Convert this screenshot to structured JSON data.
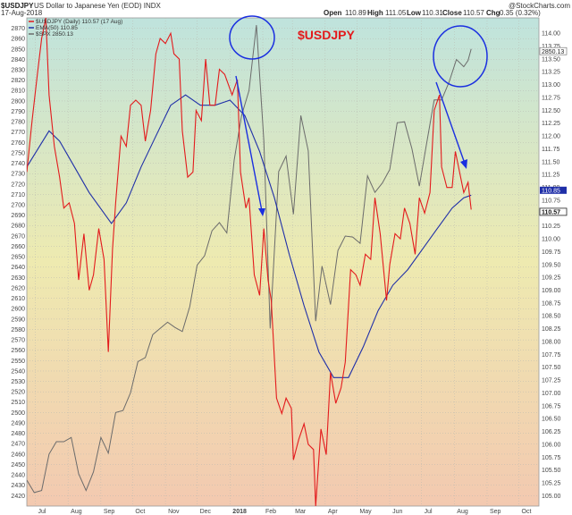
{
  "header": {
    "symbol": "$USDJPY",
    "description": "US Dollar to Japanese Yen (EOD) INDX",
    "date": "17-Aug-2018",
    "credit": "@StockCharts.com",
    "open_label": "Open",
    "open": "110.89",
    "high_label": "High",
    "high": "111.05",
    "low_label": "Low",
    "low": "110.31",
    "close_label": "Close",
    "close": "110.57",
    "chg_label": "Chg",
    "chg": "0.35 (0.32%)"
  },
  "annotation_title": "$USDJPY",
  "legend": [
    {
      "text": "$USDJPY (Daily) 110.57 (17 Aug)",
      "color": "#e31a1c"
    },
    {
      "text": "EMA(50) 110.85",
      "color": "#1f2fa8"
    },
    {
      "text": "$SPX 2850.13",
      "color": "#666666"
    }
  ],
  "price_tags": {
    "ema": "110.85",
    "spx": "2850.13",
    "usdjpy": "110.57"
  },
  "colors": {
    "usdjpy": "#e31a1c",
    "ema": "#1f2fa8",
    "spx": "#6b6b6b",
    "annotation": "#1a2fe0",
    "title": "#e31a1c",
    "bg_top": "#bfe3dd",
    "bg_mid": "#eeeab0",
    "bg_bottom": "#f3c9b0"
  },
  "chart_data": {
    "type": "line",
    "title": "",
    "x_labels": [
      "Jul",
      "Aug",
      "Sep",
      "Oct",
      "Nov",
      "Dec",
      "2018",
      "Feb",
      "Mar",
      "Apr",
      "May",
      "Jun",
      "Jul",
      "Aug",
      "Sep",
      "Oct"
    ],
    "x_ticks": [
      "2017-07-01",
      "2017-08-01",
      "2017-09-01",
      "2017-10-01",
      "2017-11-01",
      "2017-12-01",
      "2018-01-01",
      "2018-02-01",
      "2018-03-01",
      "2018-04-01",
      "2018-05-01",
      "2018-06-01",
      "2018-07-01",
      "2018-08-01",
      "2018-09-01",
      "2018-10-01"
    ],
    "x_range": [
      "2017-06-23",
      "2018-10-20"
    ],
    "left_axis": {
      "label": "$SPX",
      "range": [
        2410,
        2880
      ],
      "ticks": [
        2420,
        2430,
        2440,
        2450,
        2460,
        2470,
        2480,
        2490,
        2500,
        2510,
        2520,
        2530,
        2540,
        2550,
        2560,
        2570,
        2580,
        2590,
        2600,
        2610,
        2620,
        2630,
        2640,
        2650,
        2660,
        2670,
        2680,
        2690,
        2700,
        2710,
        2720,
        2730,
        2740,
        2750,
        2760,
        2770,
        2780,
        2790,
        2800,
        2810,
        2820,
        2830,
        2840,
        2850,
        2860,
        2870
      ]
    },
    "right_axis": {
      "label": "$USDJPY",
      "range": [
        104.8,
        114.3
      ],
      "ticks": [
        105.0,
        105.25,
        105.5,
        105.75,
        106.0,
        106.25,
        106.5,
        106.75,
        107.0,
        107.25,
        107.5,
        107.75,
        108.0,
        108.25,
        108.5,
        108.75,
        109.0,
        109.25,
        109.5,
        109.75,
        110.0,
        110.25,
        110.5,
        110.75,
        111.0,
        111.25,
        111.5,
        111.75,
        112.0,
        112.25,
        112.5,
        112.75,
        113.0,
        113.25,
        113.5,
        113.75,
        114.0
      ]
    },
    "grid": true,
    "legend_position": "top-left",
    "series": [
      {
        "name": "$USDJPY (Daily) 110.57 (17 Aug)",
        "axis": "right",
        "points": [
          [
            "2017-06-23",
            111.3
          ],
          [
            "2017-06-28",
            112.3
          ],
          [
            "2017-07-03",
            113.2
          ],
          [
            "2017-07-07",
            113.9
          ],
          [
            "2017-07-11",
            114.3
          ],
          [
            "2017-07-14",
            112.8
          ],
          [
            "2017-07-19",
            111.8
          ],
          [
            "2017-07-24",
            111.2
          ],
          [
            "2017-07-28",
            110.6
          ],
          [
            "2017-08-02",
            110.7
          ],
          [
            "2017-08-07",
            110.3
          ],
          [
            "2017-08-11",
            109.2
          ],
          [
            "2017-08-16",
            110.1
          ],
          [
            "2017-08-21",
            109.0
          ],
          [
            "2017-08-25",
            109.3
          ],
          [
            "2017-08-30",
            110.2
          ],
          [
            "2017-09-04",
            109.6
          ],
          [
            "2017-09-08",
            107.8
          ],
          [
            "2017-09-12",
            109.8
          ],
          [
            "2017-09-15",
            110.7
          ],
          [
            "2017-09-20",
            112.0
          ],
          [
            "2017-09-25",
            111.8
          ],
          [
            "2017-09-29",
            112.6
          ],
          [
            "2017-10-04",
            112.7
          ],
          [
            "2017-10-09",
            112.6
          ],
          [
            "2017-10-13",
            111.9
          ],
          [
            "2017-10-18",
            112.5
          ],
          [
            "2017-10-23",
            113.6
          ],
          [
            "2017-10-27",
            113.9
          ],
          [
            "2017-11-01",
            113.8
          ],
          [
            "2017-11-06",
            114.0
          ],
          [
            "2017-11-09",
            113.6
          ],
          [
            "2017-11-14",
            113.5
          ],
          [
            "2017-11-17",
            112.1
          ],
          [
            "2017-11-22",
            111.2
          ],
          [
            "2017-11-27",
            111.3
          ],
          [
            "2017-11-30",
            112.5
          ],
          [
            "2017-12-05",
            112.3
          ],
          [
            "2017-12-09",
            113.5
          ],
          [
            "2017-12-13",
            112.6
          ],
          [
            "2017-12-18",
            112.6
          ],
          [
            "2017-12-22",
            113.3
          ],
          [
            "2017-12-27",
            113.2
          ],
          [
            "2018-01-03",
            112.8
          ],
          [
            "2018-01-08",
            113.1
          ],
          [
            "2018-01-11",
            111.3
          ],
          [
            "2018-01-16",
            110.6
          ],
          [
            "2018-01-19",
            110.8
          ],
          [
            "2018-01-24",
            109.3
          ],
          [
            "2018-01-29",
            108.9
          ],
          [
            "2018-02-02",
            110.2
          ],
          [
            "2018-02-06",
            109.2
          ],
          [
            "2018-02-09",
            108.8
          ],
          [
            "2018-02-14",
            106.9
          ],
          [
            "2018-02-19",
            106.6
          ],
          [
            "2018-02-23",
            106.9
          ],
          [
            "2018-02-28",
            106.7
          ],
          [
            "2018-03-02",
            105.7
          ],
          [
            "2018-03-07",
            106.1
          ],
          [
            "2018-03-12",
            106.4
          ],
          [
            "2018-03-16",
            106.0
          ],
          [
            "2018-03-21",
            105.9
          ],
          [
            "2018-03-23",
            104.8
          ],
          [
            "2018-03-28",
            106.3
          ],
          [
            "2018-04-02",
            105.8
          ],
          [
            "2018-04-06",
            107.4
          ],
          [
            "2018-04-11",
            106.8
          ],
          [
            "2018-04-16",
            107.1
          ],
          [
            "2018-04-20",
            107.6
          ],
          [
            "2018-04-25",
            109.4
          ],
          [
            "2018-04-30",
            109.3
          ],
          [
            "2018-05-04",
            109.1
          ],
          [
            "2018-05-09",
            109.7
          ],
          [
            "2018-05-14",
            109.6
          ],
          [
            "2018-05-18",
            110.8
          ],
          [
            "2018-05-23",
            110.1
          ],
          [
            "2018-05-29",
            108.8
          ],
          [
            "2018-06-01",
            109.5
          ],
          [
            "2018-06-06",
            110.1
          ],
          [
            "2018-06-11",
            110.0
          ],
          [
            "2018-06-15",
            110.6
          ],
          [
            "2018-06-20",
            110.3
          ],
          [
            "2018-06-25",
            109.7
          ],
          [
            "2018-06-29",
            110.8
          ],
          [
            "2018-07-04",
            110.5
          ],
          [
            "2018-07-09",
            110.9
          ],
          [
            "2018-07-13",
            112.5
          ],
          [
            "2018-07-18",
            112.8
          ],
          [
            "2018-07-20",
            111.4
          ],
          [
            "2018-07-25",
            111.0
          ],
          [
            "2018-07-30",
            111.0
          ],
          [
            "2018-08-02",
            111.7
          ],
          [
            "2018-08-06",
            111.3
          ],
          [
            "2018-08-10",
            110.9
          ],
          [
            "2018-08-14",
            111.1
          ],
          [
            "2018-08-17",
            110.57
          ]
        ]
      },
      {
        "name": "EMA(50) 110.85",
        "axis": "right",
        "points": [
          [
            "2017-06-23",
            111.4
          ],
          [
            "2017-07-05",
            111.8
          ],
          [
            "2017-07-14",
            112.1
          ],
          [
            "2017-07-24",
            111.9
          ],
          [
            "2017-08-07",
            111.4
          ],
          [
            "2017-08-21",
            110.9
          ],
          [
            "2017-09-04",
            110.5
          ],
          [
            "2017-09-11",
            110.3
          ],
          [
            "2017-09-25",
            110.7
          ],
          [
            "2017-10-09",
            111.4
          ],
          [
            "2017-10-23",
            112.0
          ],
          [
            "2017-11-06",
            112.6
          ],
          [
            "2017-11-20",
            112.8
          ],
          [
            "2017-12-04",
            112.6
          ],
          [
            "2017-12-18",
            112.6
          ],
          [
            "2018-01-01",
            112.7
          ],
          [
            "2018-01-15",
            112.4
          ],
          [
            "2018-01-29",
            111.7
          ],
          [
            "2018-02-12",
            110.8
          ],
          [
            "2018-02-26",
            109.7
          ],
          [
            "2018-03-12",
            108.7
          ],
          [
            "2018-03-26",
            107.8
          ],
          [
            "2018-04-09",
            107.3
          ],
          [
            "2018-04-23",
            107.3
          ],
          [
            "2018-05-07",
            107.9
          ],
          [
            "2018-05-21",
            108.6
          ],
          [
            "2018-06-04",
            109.1
          ],
          [
            "2018-06-18",
            109.4
          ],
          [
            "2018-07-02",
            109.8
          ],
          [
            "2018-07-16",
            110.2
          ],
          [
            "2018-07-30",
            110.6
          ],
          [
            "2018-08-10",
            110.8
          ],
          [
            "2018-08-17",
            110.85
          ]
        ]
      },
      {
        "name": "$SPX 2850.13",
        "axis": "left",
        "points": [
          [
            "2017-06-23",
            2435
          ],
          [
            "2017-06-30",
            2423
          ],
          [
            "2017-07-07",
            2425
          ],
          [
            "2017-07-14",
            2460
          ],
          [
            "2017-07-21",
            2472
          ],
          [
            "2017-07-28",
            2472
          ],
          [
            "2017-08-04",
            2476
          ],
          [
            "2017-08-11",
            2441
          ],
          [
            "2017-08-18",
            2425
          ],
          [
            "2017-08-25",
            2443
          ],
          [
            "2017-09-01",
            2476
          ],
          [
            "2017-09-08",
            2461
          ],
          [
            "2017-09-15",
            2500
          ],
          [
            "2017-09-22",
            2502
          ],
          [
            "2017-09-29",
            2519
          ],
          [
            "2017-10-06",
            2549
          ],
          [
            "2017-10-13",
            2553
          ],
          [
            "2017-10-20",
            2575
          ],
          [
            "2017-10-27",
            2581
          ],
          [
            "2017-11-03",
            2587
          ],
          [
            "2017-11-10",
            2582
          ],
          [
            "2017-11-17",
            2578
          ],
          [
            "2017-11-24",
            2602
          ],
          [
            "2017-12-01",
            2642
          ],
          [
            "2017-12-08",
            2651
          ],
          [
            "2017-12-15",
            2675
          ],
          [
            "2017-12-22",
            2683
          ],
          [
            "2017-12-29",
            2673
          ],
          [
            "2018-01-05",
            2743
          ],
          [
            "2018-01-12",
            2786
          ],
          [
            "2018-01-19",
            2810
          ],
          [
            "2018-01-26",
            2873
          ],
          [
            "2018-02-02",
            2762
          ],
          [
            "2018-02-08",
            2581
          ],
          [
            "2018-02-16",
            2732
          ],
          [
            "2018-02-23",
            2747
          ],
          [
            "2018-03-02",
            2691
          ],
          [
            "2018-03-09",
            2786
          ],
          [
            "2018-03-16",
            2752
          ],
          [
            "2018-03-23",
            2588
          ],
          [
            "2018-03-29",
            2641
          ],
          [
            "2018-04-06",
            2604
          ],
          [
            "2018-04-13",
            2656
          ],
          [
            "2018-04-20",
            2670
          ],
          [
            "2018-04-27",
            2669
          ],
          [
            "2018-05-04",
            2663
          ],
          [
            "2018-05-11",
            2728
          ],
          [
            "2018-05-18",
            2712
          ],
          [
            "2018-05-25",
            2721
          ],
          [
            "2018-06-01",
            2734
          ],
          [
            "2018-06-08",
            2779
          ],
          [
            "2018-06-15",
            2780
          ],
          [
            "2018-06-22",
            2754
          ],
          [
            "2018-06-29",
            2718
          ],
          [
            "2018-07-06",
            2760
          ],
          [
            "2018-07-13",
            2801
          ],
          [
            "2018-07-20",
            2801
          ],
          [
            "2018-07-27",
            2818
          ],
          [
            "2018-08-03",
            2840
          ],
          [
            "2018-08-10",
            2833
          ],
          [
            "2018-08-14",
            2839
          ],
          [
            "2018-08-17",
            2850.13
          ]
        ]
      }
    ]
  }
}
